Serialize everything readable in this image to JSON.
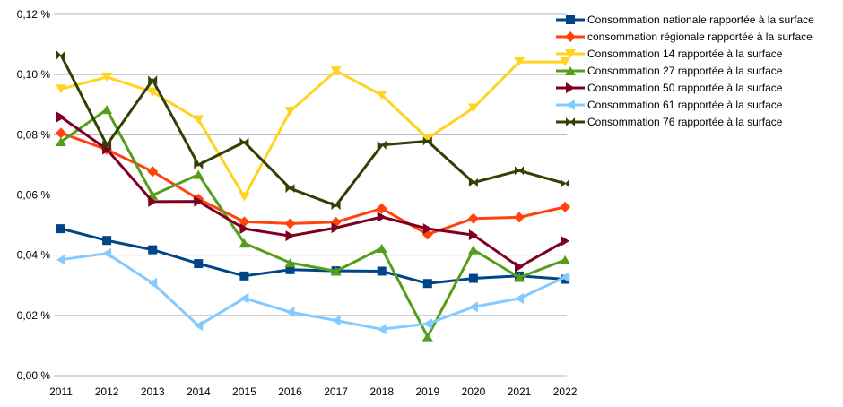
{
  "chart_data": {
    "type": "line",
    "title": "",
    "xlabel": "",
    "ylabel": "",
    "x": [
      "2011",
      "2012",
      "2013",
      "2014",
      "2015",
      "2016",
      "2017",
      "2018",
      "2019",
      "2020",
      "2021",
      "2022"
    ],
    "ylim": [
      0,
      0.12
    ],
    "yticks": [
      {
        "value": 0,
        "label": "0,00 %"
      },
      {
        "value": 0.02,
        "label": "0,02 %"
      },
      {
        "value": 0.04,
        "label": "0,04 %"
      },
      {
        "value": 0.06,
        "label": "0,06 %"
      },
      {
        "value": 0.08,
        "label": "0,08 %"
      },
      {
        "value": 0.1,
        "label": "0,10 %"
      },
      {
        "value": 0.12,
        "label": "0,12 %"
      }
    ],
    "grid": "horizontal",
    "legend": "right",
    "series": [
      {
        "name": "Consommation nationale rapportée à la surface",
        "color": "#004586",
        "marker": "square",
        "values": [
          0.0488,
          0.0449,
          0.0418,
          0.0372,
          0.0331,
          0.0352,
          0.0348,
          0.0347,
          0.0306,
          0.0323,
          0.0331,
          0.032
        ]
      },
      {
        "name": "consommation régionale rapportée à la surface",
        "color": "#ff420e",
        "marker": "diamond",
        "values": [
          0.0806,
          0.0751,
          0.0678,
          0.0587,
          0.0511,
          0.0505,
          0.051,
          0.0555,
          0.0469,
          0.0522,
          0.0526,
          0.056
        ]
      },
      {
        "name": "Consommation 14 rapportée à la surface",
        "color": "#ffd320",
        "marker": "triangle-down",
        "values": [
          0.0952,
          0.0992,
          0.0942,
          0.085,
          0.0594,
          0.0878,
          0.1012,
          0.0932,
          0.0788,
          0.0889,
          0.1042,
          0.1042
        ]
      },
      {
        "name": "Consommation 27 rapportée à la surface",
        "color": "#579d1c",
        "marker": "triangle-up",
        "values": [
          0.0777,
          0.0884,
          0.0599,
          0.0668,
          0.044,
          0.0375,
          0.0347,
          0.0423,
          0.0129,
          0.0418,
          0.0326,
          0.0384
        ]
      },
      {
        "name": "Consommation 50 rapportée à la surface",
        "color": "#7e0021",
        "marker": "triangle-right",
        "values": [
          0.0859,
          0.0752,
          0.0578,
          0.0579,
          0.0488,
          0.0464,
          0.0491,
          0.0527,
          0.0488,
          0.0467,
          0.0361,
          0.0447
        ]
      },
      {
        "name": "Consommation 61 rapportée à la surface",
        "color": "#83caff",
        "marker": "triangle-left",
        "values": [
          0.0385,
          0.0406,
          0.0307,
          0.0166,
          0.0257,
          0.0211,
          0.0183,
          0.0154,
          0.0172,
          0.0228,
          0.0256,
          0.0327
        ]
      },
      {
        "name": "Consommation 76 rapportée à la surface",
        "color": "#314004",
        "marker": "bowtie",
        "values": [
          0.1065,
          0.0766,
          0.0982,
          0.07,
          0.0776,
          0.0622,
          0.0565,
          0.0766,
          0.0779,
          0.0641,
          0.0681,
          0.0638
        ]
      }
    ]
  }
}
